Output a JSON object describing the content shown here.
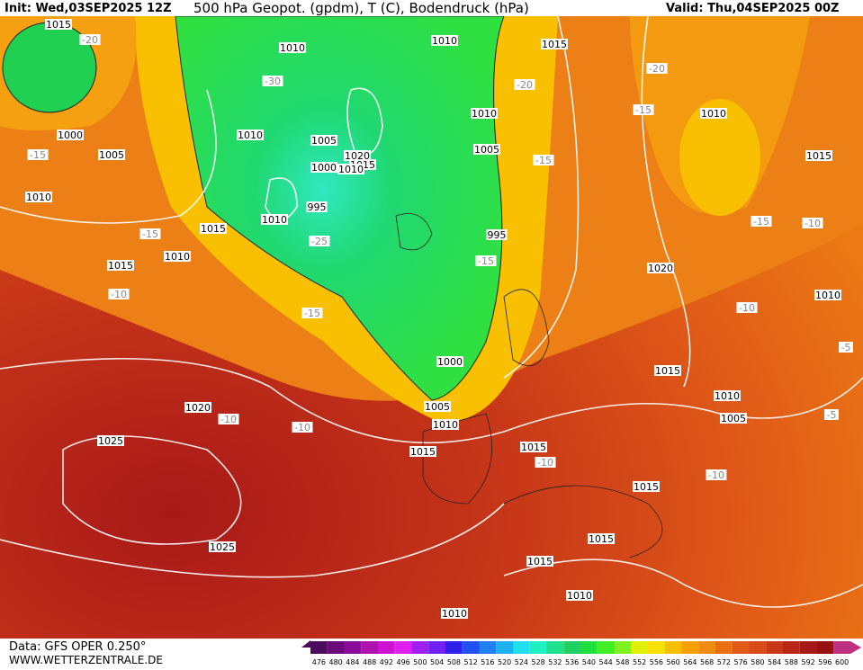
{
  "header": {
    "init": "Init: Wed,03SEP2025 12Z",
    "title": "500 hPa Geopot. (gpdm), T (C), Bodendruck (hPa)",
    "valid": "Valid: Thu,04SEP2025 00Z"
  },
  "footer": {
    "source": "Data: GFS OPER 0.250°",
    "site": "WWW.WETTERZENTRALE.DE"
  },
  "colorbar": {
    "labels": [
      "476",
      "480",
      "484",
      "488",
      "492",
      "496",
      "500",
      "504",
      "508",
      "512",
      "516",
      "520",
      "524",
      "528",
      "532",
      "536",
      "540",
      "544",
      "548",
      "552",
      "556",
      "560",
      "564",
      "568",
      "572",
      "576",
      "580",
      "584",
      "588",
      "592",
      "596",
      "600"
    ],
    "colors": [
      "#4b0a5a",
      "#6a0a7a",
      "#8a0a9a",
      "#b010b0",
      "#d010d0",
      "#e020f0",
      "#a020f0",
      "#7020f0",
      "#3020f0",
      "#2050f0",
      "#2080f0",
      "#20b0f0",
      "#20e0f0",
      "#20f0c0",
      "#20e090",
      "#20d060",
      "#20e040",
      "#40f020",
      "#80f020",
      "#e0f000",
      "#f8e000",
      "#f8c000",
      "#f8a000",
      "#f08a10",
      "#e87010",
      "#e05a18",
      "#d84a18",
      "#c83818",
      "#b82818",
      "#a81818",
      "#981010",
      "#c03080"
    ]
  },
  "labels": [
    "1015",
    "-20",
    "1010",
    "1010",
    "1015",
    "-20",
    "-30",
    "-20",
    "1010",
    "-15",
    "1010",
    "1000",
    "1010",
    "1005",
    "1020",
    "1015",
    "1000",
    "1010",
    "1005",
    "1005",
    "-15",
    "-15",
    "1015",
    "1010",
    "995",
    "1010",
    "1015",
    "-15",
    "-10",
    "-25",
    "995",
    "-15",
    "-15",
    "1010",
    "1015",
    "1020",
    "-10",
    "1010",
    "-10",
    "-15",
    "-5",
    "1000",
    "1015",
    "1010",
    "1005",
    "1010",
    "1005",
    "-5",
    "1020",
    "-10",
    "-10",
    "1025",
    "1015",
    "1015",
    "-10",
    "-10",
    "1015",
    "1015",
    "1025",
    "1015",
    "1010",
    "1010"
  ]
}
